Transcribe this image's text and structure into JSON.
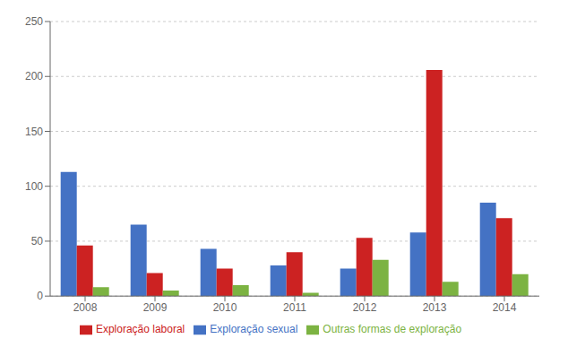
{
  "chart_data": {
    "type": "bar",
    "categories": [
      "2008",
      "2009",
      "2010",
      "2011",
      "2012",
      "2013",
      "2014"
    ],
    "series": [
      {
        "name": "Exploração sexual",
        "color": "#4472c4",
        "values": [
          113,
          65,
          43,
          28,
          25,
          58,
          85
        ]
      },
      {
        "name": "Exploração laboral",
        "color": "#cc2222",
        "values": [
          46,
          21,
          25,
          40,
          53,
          206,
          71
        ]
      },
      {
        "name": "Outras formas de exploração",
        "color": "#7cb342",
        "values": [
          8,
          5,
          10,
          3,
          33,
          13,
          20
        ]
      }
    ],
    "ylim": [
      0,
      250
    ],
    "yticks": [
      0,
      50,
      100,
      150,
      200,
      250
    ],
    "grid": true,
    "legend": "bottom"
  }
}
